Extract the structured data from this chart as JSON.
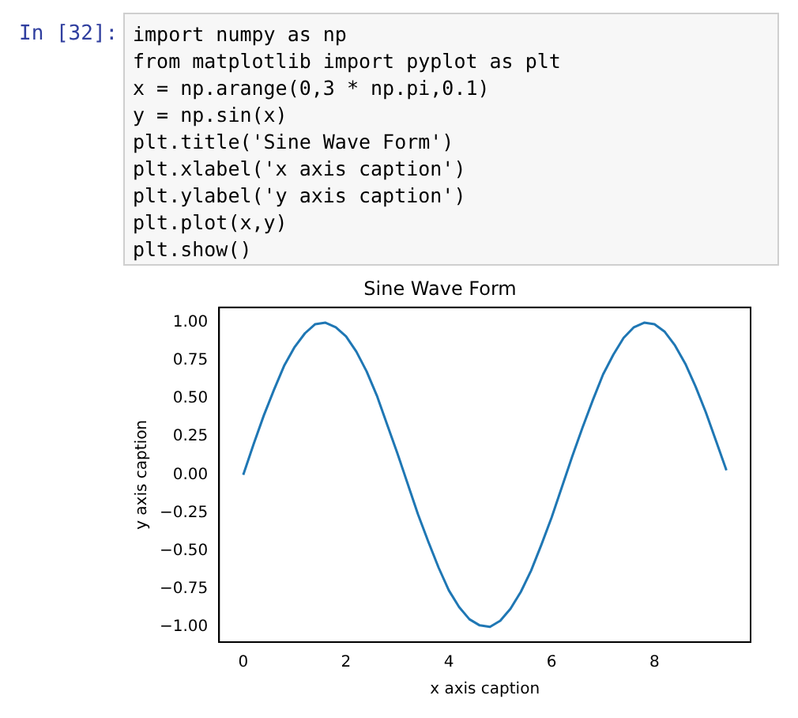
{
  "chart_data": {
    "type": "line",
    "title": "Sine Wave Form",
    "xlabel": "x axis caption",
    "ylabel": "y axis caption",
    "annotations": [
      "In  [32]:",
      "import numpy as np",
      "from matplotlib import pyplot as plt",
      "x = np.arange(0,3 * np.pi,0.1)",
      "y = np.sin(x)",
      "plt.title('Sine Wave Form')",
      "plt.xlabel('x axis caption')",
      "plt.ylabel('y axis caption')",
      "plt.plot(x,y)",
      "plt.show()"
    ],
    "x": [
      0,
      0.2,
      0.4,
      0.6,
      0.8,
      1.0,
      1.2,
      1.4,
      1.6,
      1.8,
      2.0,
      2.2,
      2.4,
      2.6,
      2.8,
      3.0,
      3.2,
      3.4,
      3.6,
      3.8,
      4.0,
      4.2,
      4.4,
      4.6,
      4.8,
      5.0,
      5.2,
      5.4,
      5.6,
      5.8,
      6.0,
      6.2,
      6.4,
      6.6,
      6.8,
      7.0,
      7.2,
      7.4,
      7.6,
      7.8,
      8.0,
      8.2,
      8.4,
      8.6,
      8.8,
      9.0,
      9.2,
      9.4
    ],
    "series": [
      {
        "color": "#1f77b4",
        "values": [
          0,
          0.2,
          0.39,
          0.56,
          0.72,
          0.84,
          0.93,
          0.99,
          1.0,
          0.97,
          0.91,
          0.81,
          0.68,
          0.52,
          0.33,
          0.14,
          -0.06,
          -0.26,
          -0.44,
          -0.61,
          -0.76,
          -0.87,
          -0.95,
          -0.99,
          -1.0,
          -0.96,
          -0.88,
          -0.77,
          -0.63,
          -0.46,
          -0.28,
          -0.08,
          0.12,
          0.31,
          0.49,
          0.66,
          0.79,
          0.9,
          0.97,
          1.0,
          0.99,
          0.94,
          0.85,
          0.73,
          0.58,
          0.41,
          0.22,
          0.03
        ]
      }
    ],
    "xlim": [
      -0.47,
      9.87
    ],
    "xticks": [
      0,
      2,
      4,
      6,
      8
    ],
    "ylim": [
      -1.1,
      1.1
    ],
    "yticks": [
      {
        "value": -1,
        "label": "−1.00"
      },
      {
        "value": -0.75,
        "label": "−0.75"
      },
      {
        "value": -0.5,
        "label": "−0.50"
      },
      {
        "value": -0.25,
        "label": "−0.25"
      },
      {
        "value": 0,
        "label": "0.00"
      },
      {
        "value": 0.25,
        "label": "0.25"
      },
      {
        "value": 0.5,
        "label": "0.50"
      },
      {
        "value": 0.75,
        "label": "0.75"
      },
      {
        "value": 1,
        "label": "1.00"
      }
    ],
    "grid": false,
    "legend": false,
    "marker": "none",
    "line_style": "solid"
  }
}
